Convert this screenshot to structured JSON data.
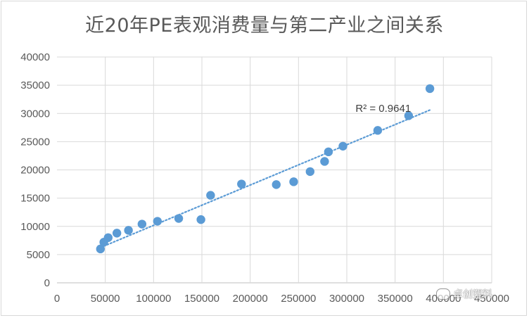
{
  "chart_data": {
    "type": "scatter",
    "title": "近20年PE表观消费量与第二产业之间关系",
    "xlabel": "",
    "ylabel": "",
    "xlim": [
      0,
      450000
    ],
    "ylim": [
      0,
      40000
    ],
    "x_ticks": [
      "0",
      "50000",
      "100000",
      "150000",
      "200000",
      "250000",
      "300000",
      "350000",
      "400000",
      "450000"
    ],
    "y_ticks": [
      "0",
      "5000",
      "10000",
      "15000",
      "20000",
      "25000",
      "30000",
      "35000",
      "40000"
    ],
    "points": [
      {
        "x": 45000,
        "y": 6000
      },
      {
        "x": 48500,
        "y": 7200
      },
      {
        "x": 53000,
        "y": 8000
      },
      {
        "x": 62000,
        "y": 8800
      },
      {
        "x": 74000,
        "y": 9300
      },
      {
        "x": 88000,
        "y": 10400
      },
      {
        "x": 104000,
        "y": 10900
      },
      {
        "x": 126000,
        "y": 11400
      },
      {
        "x": 149000,
        "y": 11200
      },
      {
        "x": 159000,
        "y": 15500
      },
      {
        "x": 191000,
        "y": 17500
      },
      {
        "x": 227000,
        "y": 17400
      },
      {
        "x": 245000,
        "y": 17900
      },
      {
        "x": 262000,
        "y": 19700
      },
      {
        "x": 277000,
        "y": 21500
      },
      {
        "x": 281000,
        "y": 23200
      },
      {
        "x": 296000,
        "y": 24200
      },
      {
        "x": 332000,
        "y": 27000
      },
      {
        "x": 364000,
        "y": 29600
      },
      {
        "x": 386000,
        "y": 34400
      }
    ],
    "trendline": {
      "type": "linear",
      "x_start": 48500,
      "y_start": 6500,
      "x_end": 386000,
      "y_end": 30600
    },
    "annotation": "R² = 0.9641",
    "grid": true,
    "legend": "none",
    "colors": {
      "point": "#5b9bd5",
      "trend": "#5b9bd5",
      "grid": "#d9d9d9"
    }
  },
  "watermark": {
    "text": "卓创塑料",
    "icon": "wechat-icon"
  }
}
